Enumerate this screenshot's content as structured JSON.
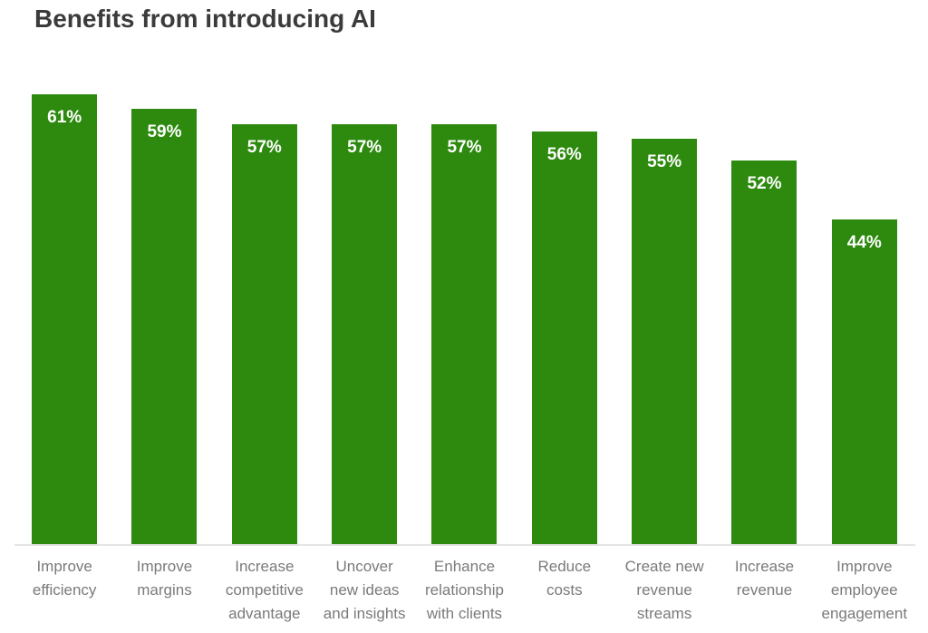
{
  "chart_data": {
    "type": "bar",
    "title": "Benefits from introducing AI",
    "categories": [
      "Improve efficiency",
      "Improve margins",
      "Increase competitive advantage",
      "Uncover new ideas and insights",
      "Enhance relationship with clients",
      "Reduce costs",
      "Create new revenue streams",
      "Increase revenue",
      "Improve employee engagement"
    ],
    "category_lines": [
      [
        "Improve",
        "efficiency"
      ],
      [
        "Improve",
        "margins"
      ],
      [
        "Increase",
        "competitive",
        "advantage"
      ],
      [
        "Uncover",
        "new ideas",
        "and insights"
      ],
      [
        "Enhance",
        "relationship",
        "with clients"
      ],
      [
        "Reduce",
        "costs"
      ],
      [
        "Create new",
        "revenue",
        "streams"
      ],
      [
        "Increase",
        "revenue"
      ],
      [
        "Improve",
        "employee",
        "engagement"
      ]
    ],
    "values": [
      61,
      59,
      57,
      57,
      57,
      56,
      55,
      52,
      44
    ],
    "value_labels": [
      "61%",
      "59%",
      "57%",
      "57%",
      "57%",
      "56%",
      "55%",
      "52%",
      "44%"
    ],
    "unit": "%",
    "xlabel": "",
    "ylabel": "",
    "ylim": [
      0,
      61
    ],
    "grid": false,
    "legend": "none",
    "bar_color": "#2d8a0e",
    "value_label_color": "#ffffff",
    "category_label_color": "#7a7a7a",
    "axis_line_color": "#e5e5e5",
    "title_color": "#3b3b3b",
    "background_color": "#ffffff"
  }
}
